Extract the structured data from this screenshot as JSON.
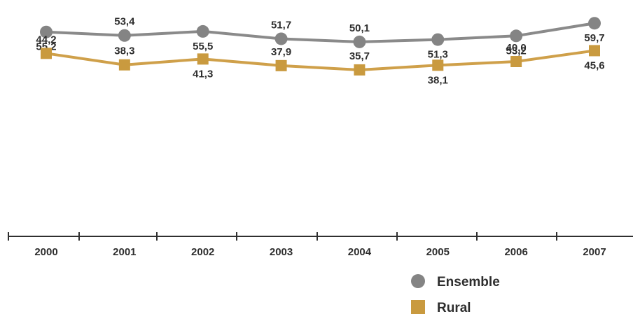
{
  "chart_data": {
    "type": "line",
    "categories": [
      "2000",
      "2001",
      "2002",
      "2003",
      "2004",
      "2005",
      "2006",
      "2007"
    ],
    "series": [
      {
        "name": "Ensemble",
        "values": [
          55.2,
          53.4,
          55.5,
          51.7,
          50.1,
          51.3,
          53.2,
          59.7
        ],
        "labels": [
          "55,2",
          "53,4",
          "55,5",
          "51,7",
          "50,1",
          "51,3",
          "53,2",
          "59,7"
        ],
        "marker": "circle",
        "color": "#848484",
        "line_color": "#8a8a8a"
      },
      {
        "name": "Rural",
        "values": [
          44.2,
          38.3,
          41.3,
          37.9,
          35.7,
          38.1,
          40.0,
          45.6
        ],
        "labels": [
          "44,2",
          "38,3",
          "41,3",
          "37,9",
          "35,7",
          "38,1",
          "40,0",
          "45,6"
        ],
        "marker": "square",
        "color": "#c99a3f",
        "line_color": "#cfa04a"
      }
    ],
    "title": "",
    "xlabel": "",
    "ylabel": "",
    "grid": false,
    "legend_position": "bottom-right",
    "axis_color": "#2f2f2f",
    "label_color": "#2e2e2e"
  }
}
